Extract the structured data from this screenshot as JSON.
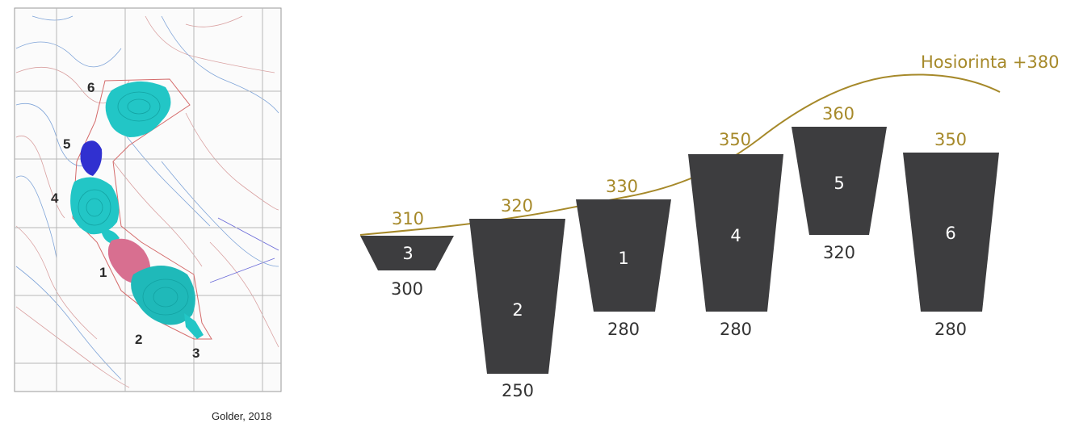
{
  "map": {
    "credit": "Golder, 2018",
    "labels": {
      "p1": "1",
      "p2": "2",
      "p3": "3",
      "p4": "4",
      "p5": "5",
      "p6": "6"
    },
    "colors": {
      "cyan": "#22c6c6",
      "blue": "#3030d0",
      "pink": "#d86f90"
    }
  },
  "profile": {
    "reference_label": "Hosiorinta +380",
    "colors": {
      "pit": "#3d3d3f",
      "gold": "#a6892a"
    },
    "pits": [
      {
        "id": "3",
        "top": "310",
        "bottom": "300"
      },
      {
        "id": "2",
        "top": "320",
        "bottom": "250"
      },
      {
        "id": "1",
        "top": "330",
        "bottom": "280"
      },
      {
        "id": "4",
        "top": "350",
        "bottom": "280"
      },
      {
        "id": "5",
        "top": "360",
        "bottom": "320"
      },
      {
        "id": "6",
        "top": "350",
        "bottom": "280"
      }
    ]
  }
}
